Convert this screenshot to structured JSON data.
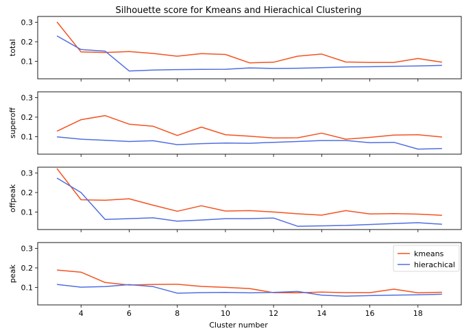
{
  "title": "Silhouette score for Kmeans and Hierachical Clustering",
  "colors": {
    "kmeans": "#f4511e",
    "hierachical": "#4f6ee0"
  },
  "chart_data": {
    "type": "line",
    "title": "Silhouette score for Kmeans and Hierachical Clustering",
    "xlabel": "Cluster number",
    "x": [
      3,
      4,
      5,
      6,
      7,
      8,
      9,
      10,
      11,
      12,
      13,
      14,
      15,
      16,
      17,
      18,
      19
    ],
    "xlim": [
      2.2,
      19.8
    ],
    "xticks": [
      4,
      6,
      8,
      10,
      12,
      14,
      16,
      18
    ],
    "ylim": [
      0.01,
      0.33
    ],
    "yticks": [
      0.1,
      0.2,
      0.3
    ],
    "sharex": true,
    "grid": false,
    "legend": {
      "entries": [
        "kmeans",
        "hierachical"
      ],
      "placement": "top-right",
      "panel": "peak"
    },
    "panels": [
      {
        "ylabel": "total",
        "series": [
          {
            "name": "kmeans",
            "values": [
              0.302,
              0.148,
              0.145,
              0.15,
              0.14,
              0.126,
              0.139,
              0.135,
              0.092,
              0.095,
              0.126,
              0.137,
              0.096,
              0.094,
              0.094,
              0.114,
              0.095
            ]
          },
          {
            "name": "hierachical",
            "values": [
              0.23,
              0.16,
              0.152,
              0.05,
              0.055,
              0.057,
              0.058,
              0.059,
              0.066,
              0.063,
              0.064,
              0.067,
              0.071,
              0.072,
              0.074,
              0.076,
              0.079
            ]
          }
        ]
      },
      {
        "ylabel": "superoff",
        "series": [
          {
            "name": "kmeans",
            "values": [
              0.128,
              0.187,
              0.208,
              0.164,
              0.153,
              0.106,
              0.149,
              0.11,
              0.102,
              0.093,
              0.094,
              0.118,
              0.087,
              0.096,
              0.108,
              0.11,
              0.098
            ]
          },
          {
            "name": "hierachical",
            "values": [
              0.099,
              0.087,
              0.081,
              0.075,
              0.079,
              0.059,
              0.064,
              0.067,
              0.066,
              0.071,
              0.075,
              0.08,
              0.08,
              0.069,
              0.071,
              0.036,
              0.039
            ]
          }
        ]
      },
      {
        "ylabel": "offpeak",
        "series": [
          {
            "name": "kmeans",
            "values": [
              0.323,
              0.163,
              0.16,
              0.168,
              0.135,
              0.104,
              0.132,
              0.105,
              0.107,
              0.1,
              0.091,
              0.084,
              0.107,
              0.09,
              0.092,
              0.089,
              0.083
            ]
          },
          {
            "name": "hierachical",
            "values": [
              0.274,
              0.2,
              0.062,
              0.066,
              0.07,
              0.053,
              0.059,
              0.066,
              0.066,
              0.069,
              0.027,
              0.029,
              0.031,
              0.036,
              0.041,
              0.045,
              0.037
            ]
          }
        ]
      },
      {
        "ylabel": "peak",
        "series": [
          {
            "name": "kmeans",
            "values": [
              0.189,
              0.178,
              0.125,
              0.112,
              0.115,
              0.116,
              0.105,
              0.1,
              0.094,
              0.073,
              0.072,
              0.076,
              0.073,
              0.073,
              0.091,
              0.072,
              0.075
            ]
          },
          {
            "name": "hierachical",
            "values": [
              0.115,
              0.101,
              0.104,
              0.114,
              0.104,
              0.07,
              0.073,
              0.074,
              0.072,
              0.074,
              0.079,
              0.06,
              0.055,
              0.058,
              0.06,
              0.062,
              0.065
            ]
          }
        ]
      }
    ]
  }
}
